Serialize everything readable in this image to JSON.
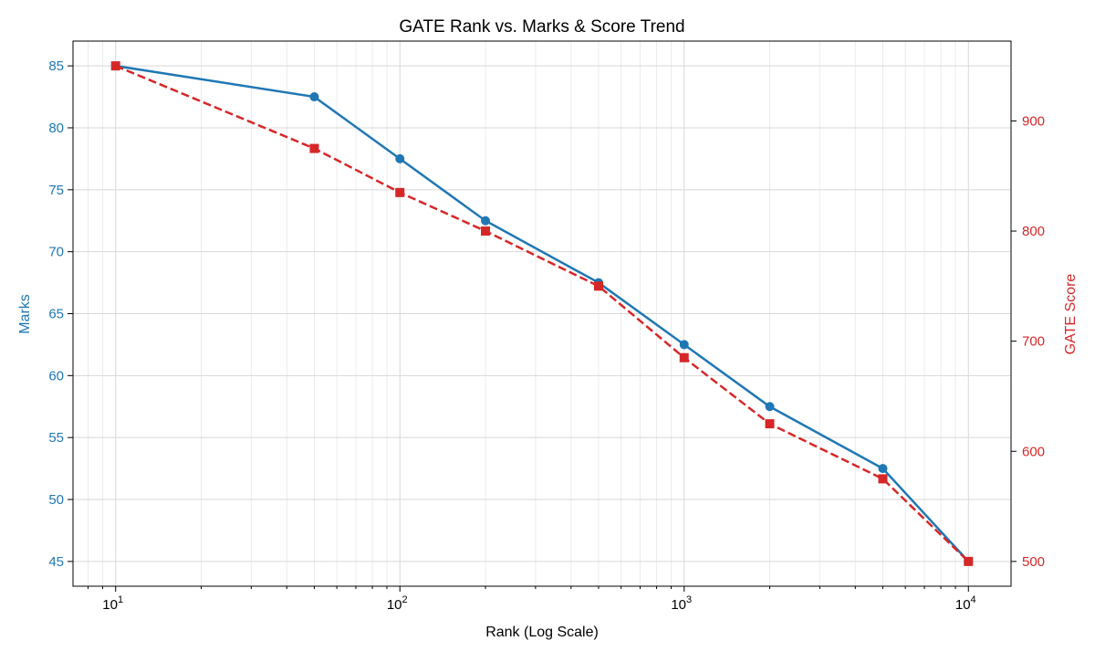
{
  "chart_data": {
    "type": "line",
    "title": "GATE Rank vs. Marks & Score Trend",
    "xlabel": "Rank (Log Scale)",
    "ylabel_left": "Marks",
    "ylabel_right": "GATE Score",
    "x_scale": "log",
    "xlim": [
      7.08,
      14125
    ],
    "ylim_left": [
      43,
      87
    ],
    "ylim_right": [
      477.5,
      972.5
    ],
    "x_ticks": [
      10,
      100,
      1000,
      10000
    ],
    "x_tick_labels": [
      [
        "10",
        "1"
      ],
      [
        "10",
        "2"
      ],
      [
        "10",
        "3"
      ],
      [
        "10",
        "4"
      ]
    ],
    "y_left_ticks": [
      45,
      50,
      55,
      60,
      65,
      70,
      75,
      80,
      85
    ],
    "y_right_ticks": [
      500,
      600,
      700,
      800,
      900
    ],
    "grid": true,
    "x": [
      10,
      50,
      100,
      200,
      500,
      1000,
      2000,
      5000,
      10000
    ],
    "series": [
      {
        "axis": "left",
        "color": "#1f77b4",
        "marker": "circle",
        "linestyle": "solid",
        "values": [
          85,
          82.5,
          77.5,
          72.5,
          67.5,
          62.5,
          57.5,
          52.5,
          45
        ]
      },
      {
        "axis": "right",
        "color": "#d62728",
        "marker": "square",
        "linestyle": "dashed",
        "values": [
          950,
          875,
          835,
          800,
          750,
          685,
          625,
          575,
          500
        ]
      }
    ]
  }
}
